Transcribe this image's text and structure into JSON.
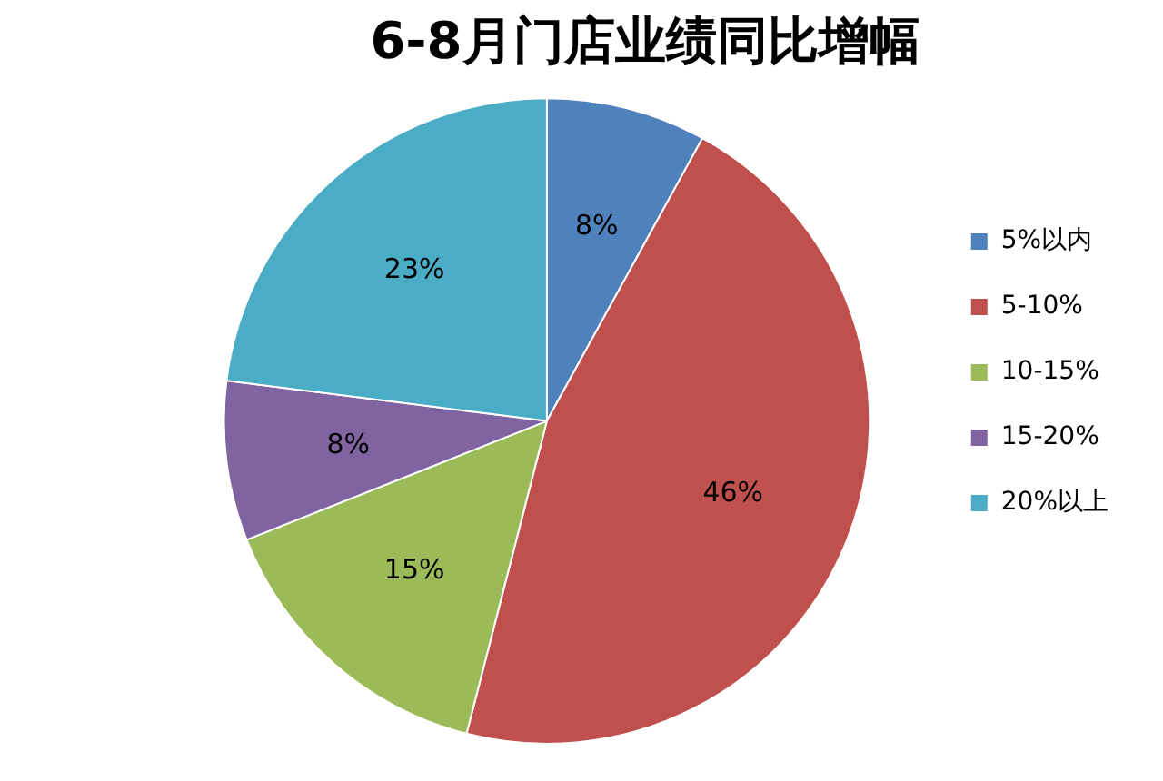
{
  "chart_data": {
    "type": "pie",
    "title": "6-8月门店业绩同比增幅",
    "categories": [
      "5%以内",
      "5-10%",
      "10-15%",
      "15-20%",
      "20%以上"
    ],
    "values": [
      8,
      46,
      15,
      8,
      23
    ],
    "colors": [
      "#4f81bd",
      "#c0504d",
      "#9bbb59",
      "#8064a2",
      "#4bacc6"
    ],
    "value_labels": [
      "8%",
      "46%",
      "15%",
      "8%",
      "23%"
    ],
    "legend": "right"
  }
}
